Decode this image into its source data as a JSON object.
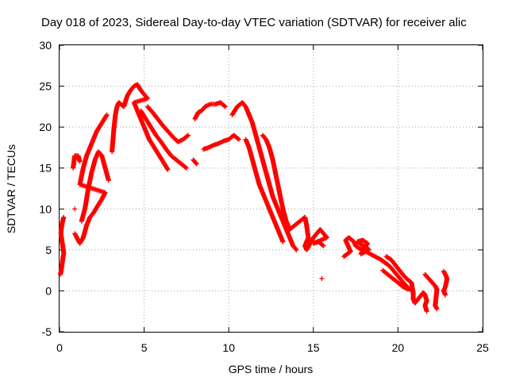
{
  "chart_data": {
    "type": "scatter",
    "title": "Day 018 of 2023, Sidereal Day-to-day VTEC variation (SDTVAR) for receiver alic",
    "xlabel": "GPS time / hours",
    "ylabel": "SDTVAR / TECUs",
    "xlim": [
      0,
      25
    ],
    "ylim": [
      -5,
      30
    ],
    "xticks": [
      "0",
      "5",
      "10",
      "15",
      "20",
      "25"
    ],
    "yticks": [
      "-5",
      "0",
      "5",
      "10",
      "15",
      "20",
      "25",
      "30"
    ],
    "grid": true,
    "marker": "+",
    "color": "#ff0000",
    "series": [
      {
        "name": "SDTVAR",
        "points": [
          [
            0.05,
            2.0
          ],
          [
            0.1,
            2.5
          ],
          [
            0.15,
            3.2
          ],
          [
            0.2,
            4.0
          ],
          [
            0.25,
            4.6
          ],
          [
            0.08,
            7.0
          ],
          [
            0.12,
            7.8
          ],
          [
            0.18,
            8.5
          ],
          [
            0.25,
            9.0
          ],
          [
            0.8,
            15.0
          ],
          [
            0.9,
            16.5
          ],
          [
            1.1,
            16.5
          ],
          [
            1.2,
            15.8
          ],
          [
            0.9,
            10.0
          ],
          [
            0.9,
            7.0
          ],
          [
            1.2,
            5.8
          ],
          [
            1.4,
            6.5
          ],
          [
            1.6,
            8.0
          ],
          [
            1.8,
            9.0
          ],
          [
            2.0,
            9.5
          ],
          [
            2.2,
            10.2
          ],
          [
            2.5,
            11.2
          ],
          [
            2.7,
            12.0
          ],
          [
            1.2,
            13.0
          ],
          [
            1.4,
            15.0
          ],
          [
            1.6,
            16.5
          ],
          [
            1.8,
            17.5
          ],
          [
            2.0,
            18.5
          ],
          [
            2.2,
            19.5
          ],
          [
            2.5,
            20.5
          ],
          [
            2.8,
            21.5
          ],
          [
            1.3,
            8.5
          ],
          [
            1.5,
            10.0
          ],
          [
            1.7,
            12.5
          ],
          [
            1.9,
            14.5
          ],
          [
            2.1,
            16.0
          ],
          [
            2.3,
            17.0
          ],
          [
            2.5,
            16.5
          ],
          [
            2.7,
            15.0
          ],
          [
            2.9,
            13.5
          ],
          [
            3.1,
            17.0
          ],
          [
            3.2,
            19.5
          ],
          [
            3.3,
            21.5
          ],
          [
            3.4,
            22.5
          ],
          [
            3.5,
            23.0
          ],
          [
            3.8,
            22.5
          ],
          [
            4.0,
            23.8
          ],
          [
            4.2,
            24.5
          ],
          [
            4.4,
            25.0
          ],
          [
            4.6,
            25.2
          ],
          [
            4.8,
            24.5
          ],
          [
            5.0,
            24.0
          ],
          [
            5.2,
            23.5
          ],
          [
            4.4,
            23.0
          ],
          [
            4.7,
            21.5
          ],
          [
            5.0,
            20.0
          ],
          [
            5.3,
            18.5
          ],
          [
            5.6,
            17.5
          ],
          [
            5.9,
            16.5
          ],
          [
            6.2,
            15.5
          ],
          [
            6.4,
            14.8
          ],
          [
            4.8,
            22.0
          ],
          [
            5.1,
            21.0
          ],
          [
            5.4,
            20.0
          ],
          [
            5.7,
            19.0
          ],
          [
            6.0,
            18.2
          ],
          [
            6.3,
            17.3
          ],
          [
            6.6,
            16.5
          ],
          [
            6.9,
            16.0
          ],
          [
            7.2,
            15.5
          ],
          [
            7.5,
            15.0
          ],
          [
            5.2,
            22.5
          ],
          [
            5.5,
            21.8
          ],
          [
            5.8,
            21.0
          ],
          [
            6.1,
            20.2
          ],
          [
            6.4,
            19.5
          ],
          [
            6.7,
            18.8
          ],
          [
            7.0,
            18.2
          ],
          [
            7.3,
            18.5
          ],
          [
            7.6,
            19.0
          ],
          [
            7.9,
            16.0
          ],
          [
            8.1,
            15.5
          ],
          [
            8.0,
            21.0
          ],
          [
            8.2,
            21.8
          ],
          [
            8.4,
            22.0
          ],
          [
            8.6,
            22.5
          ],
          [
            8.9,
            22.8
          ],
          [
            9.2,
            22.8
          ],
          [
            9.5,
            23.0
          ],
          [
            9.8,
            22.5
          ],
          [
            8.5,
            17.3
          ],
          [
            8.8,
            17.5
          ],
          [
            9.1,
            17.8
          ],
          [
            9.4,
            18.0
          ],
          [
            9.7,
            18.3
          ],
          [
            10.0,
            18.5
          ],
          [
            10.3,
            19.0
          ],
          [
            10.6,
            18.5
          ],
          [
            10.2,
            21.5
          ],
          [
            10.5,
            22.5
          ],
          [
            10.8,
            23.0
          ],
          [
            11.0,
            22.5
          ],
          [
            11.2,
            21.5
          ],
          [
            11.4,
            20.5
          ],
          [
            11.6,
            19.0
          ],
          [
            11.8,
            17.5
          ],
          [
            12.0,
            16.0
          ],
          [
            12.2,
            14.5
          ],
          [
            12.4,
            13.0
          ],
          [
            12.6,
            11.5
          ],
          [
            12.8,
            10.5
          ],
          [
            13.0,
            9.5
          ],
          [
            13.2,
            8.5
          ],
          [
            13.4,
            7.5
          ],
          [
            13.6,
            6.5
          ],
          [
            13.8,
            5.5
          ],
          [
            14.0,
            5.0
          ],
          [
            11.0,
            18.5
          ],
          [
            11.2,
            17.5
          ],
          [
            11.4,
            16.0
          ],
          [
            11.6,
            14.5
          ],
          [
            11.8,
            13.0
          ],
          [
            12.0,
            12.0
          ],
          [
            12.2,
            11.0
          ],
          [
            12.4,
            10.0
          ],
          [
            12.6,
            9.0
          ],
          [
            12.8,
            8.0
          ],
          [
            13.0,
            7.0
          ],
          [
            13.2,
            6.0
          ],
          [
            12.0,
            19.0
          ],
          [
            12.2,
            18.5
          ],
          [
            12.4,
            17.5
          ],
          [
            12.6,
            16.0
          ],
          [
            12.8,
            14.0
          ],
          [
            13.0,
            12.0
          ],
          [
            13.2,
            10.0
          ],
          [
            13.4,
            8.5
          ],
          [
            13.6,
            7.5
          ],
          [
            14.5,
            9.0
          ],
          [
            14.6,
            8.0
          ],
          [
            14.7,
            6.5
          ],
          [
            14.5,
            5.5
          ],
          [
            14.6,
            5.0
          ],
          [
            15.0,
            6.5
          ],
          [
            15.2,
            7.0
          ],
          [
            15.4,
            7.5
          ],
          [
            15.6,
            7.0
          ],
          [
            15.8,
            6.5
          ],
          [
            15.0,
            5.8
          ],
          [
            15.3,
            6.0
          ],
          [
            15.6,
            5.5
          ],
          [
            15.5,
            1.5
          ],
          [
            16.8,
            4.2
          ],
          [
            17.0,
            4.5
          ],
          [
            17.2,
            4.8
          ],
          [
            16.9,
            6.2
          ],
          [
            17.1,
            6.5
          ],
          [
            17.4,
            6.0
          ],
          [
            17.5,
            5.5
          ],
          [
            17.7,
            5.2
          ],
          [
            17.9,
            5.0
          ],
          [
            18.1,
            5.3
          ],
          [
            18.3,
            5.0
          ],
          [
            17.6,
            6.0
          ],
          [
            17.9,
            6.2
          ],
          [
            18.2,
            5.8
          ],
          [
            17.8,
            4.5
          ],
          [
            18.1,
            4.8
          ],
          [
            19.0,
            3.8
          ],
          [
            19.2,
            3.5
          ],
          [
            19.4,
            3.2
          ],
          [
            19.6,
            2.8
          ],
          [
            19.8,
            2.3
          ],
          [
            20.0,
            1.8
          ],
          [
            20.2,
            1.3
          ],
          [
            20.4,
            0.8
          ],
          [
            20.6,
            0.4
          ],
          [
            20.8,
            0.0
          ],
          [
            19.1,
            2.5
          ],
          [
            19.4,
            2.0
          ],
          [
            19.7,
            1.5
          ],
          [
            20.0,
            1.0
          ],
          [
            20.3,
            0.5
          ],
          [
            20.6,
            0.2
          ],
          [
            19.3,
            4.2
          ],
          [
            19.6,
            3.8
          ],
          [
            19.9,
            3.0
          ],
          [
            20.2,
            2.2
          ],
          [
            20.5,
            1.5
          ],
          [
            20.8,
            1.0
          ],
          [
            20.9,
            -0.3
          ],
          [
            20.9,
            -1.0
          ],
          [
            21.0,
            -1.5
          ],
          [
            21.5,
            -0.2
          ],
          [
            21.6,
            -0.5
          ],
          [
            21.7,
            -1.2
          ],
          [
            21.6,
            -1.8
          ],
          [
            21.7,
            -2.5
          ],
          [
            21.6,
            2.0
          ],
          [
            22.2,
            0.6
          ],
          [
            22.3,
            0.2
          ],
          [
            22.2,
            -1.8
          ],
          [
            22.3,
            -2.2
          ],
          [
            22.7,
            2.4
          ],
          [
            22.8,
            2.0
          ],
          [
            22.9,
            1.5
          ],
          [
            22.8,
            0.5
          ],
          [
            22.7,
            0.0
          ],
          [
            22.8,
            -0.5
          ]
        ]
      }
    ]
  }
}
